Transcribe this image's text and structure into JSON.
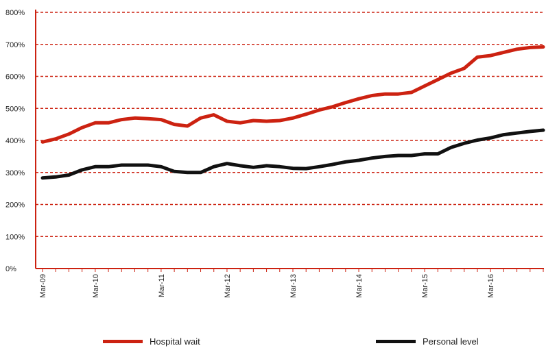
{
  "chart_data": {
    "type": "line",
    "x": [
      "Mar-09",
      "",
      "",
      "",
      "Mar-10",
      "",
      "",
      "",
      "",
      "Mar-11",
      "",
      "",
      "",
      "",
      "Mar-12",
      "",
      "",
      "",
      "",
      "Mar-13",
      "",
      "",
      "",
      "",
      "Mar-14",
      "",
      "",
      "",
      "",
      "Mar-15",
      "",
      "",
      "",
      "",
      "Mar-16",
      "",
      "",
      "",
      ""
    ],
    "x_tick_labels": [
      "Mar-09",
      "Mar-10",
      "Mar-11",
      "Mar-12",
      "Mar-13",
      "Mar-14",
      "Mar-15",
      "Mar-16"
    ],
    "ylim": [
      0,
      800
    ],
    "y_ticks": [
      0,
      100,
      200,
      300,
      400,
      500,
      600,
      700,
      800
    ],
    "y_tick_labels": [
      "0%",
      "100%",
      "200%",
      "300%",
      "400%",
      "500%",
      "600%",
      "700%",
      "800%"
    ],
    "grid": true,
    "legend_position": "bottom",
    "series": [
      {
        "name": "Hospital wait",
        "color": "#cc2211",
        "values": [
          395,
          405,
          420,
          440,
          455,
          455,
          465,
          470,
          468,
          465,
          450,
          445,
          470,
          480,
          460,
          455,
          462,
          460,
          462,
          470,
          482,
          495,
          505,
          518,
          530,
          540,
          545,
          545,
          550,
          570,
          590,
          610,
          625,
          660,
          665,
          675,
          685,
          690,
          692
        ]
      },
      {
        "name": "Personal level",
        "color": "#111111",
        "values": [
          283,
          286,
          292,
          308,
          318,
          318,
          323,
          323,
          323,
          318,
          303,
          300,
          300,
          318,
          328,
          321,
          316,
          321,
          318,
          313,
          312,
          318,
          325,
          333,
          338,
          345,
          350,
          353,
          353,
          358,
          358,
          378,
          391,
          401,
          408,
          418,
          423,
          428,
          432
        ]
      }
    ]
  },
  "legend": {
    "series1_label": "Hospital wait",
    "series2_label": "Personal level"
  },
  "colors": {
    "axis": "#cc2211",
    "grid": "#cc2211"
  }
}
